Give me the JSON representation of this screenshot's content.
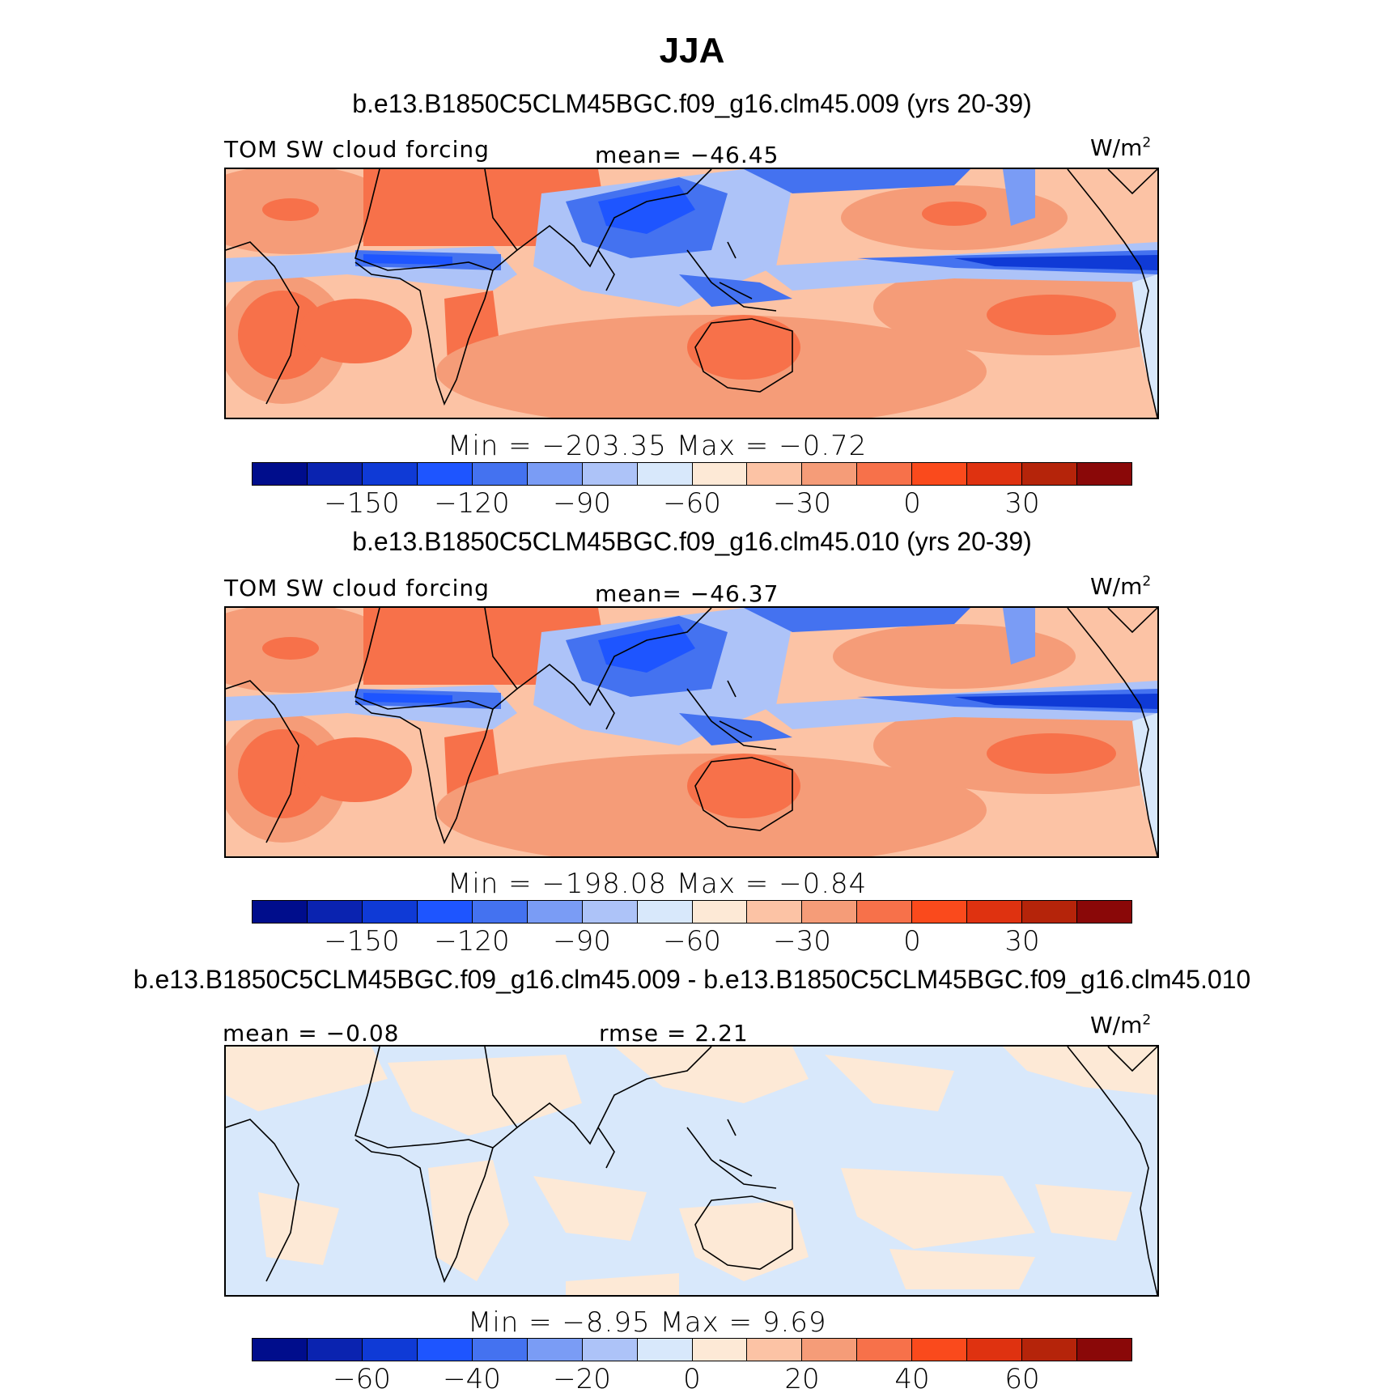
{
  "season": "JJA",
  "units": {
    "base": "W/m",
    "exp": "2"
  },
  "panel1": {
    "title": "b.e13.B1850C5CLM45BGC.f09_g16.clm45.009 (yrs 20-39)",
    "variable": "TOM SW cloud forcing",
    "mean": "mean= −46.45",
    "minmax": "Min = −203.35 Max =  −0.72"
  },
  "panel2": {
    "title": "b.e13.B1850C5CLM45BGC.f09_g16.clm45.010 (yrs 20-39)",
    "variable": "TOM SW cloud forcing",
    "mean": "mean= −46.37",
    "minmax": "Min = −198.08 Max =  −0.84"
  },
  "panel3": {
    "title": "b.e13.B1850C5CLM45BGC.f09_g16.clm45.009 - b.e13.B1850C5CLM45BGC.f09_g16.clm45.010",
    "mean": "mean =  −0.08",
    "rmse": "rmse =   2.21",
    "minmax": "Min =   −8.95 Max =   9.69"
  },
  "colorbar": {
    "colors": [
      "#000d8c",
      "#0a23b0",
      "#0f3ad6",
      "#1e55ff",
      "#4472f0",
      "#7a9cf5",
      "#adc3f8",
      "#d8e8fb",
      "#fde9d6",
      "#fcc3a5",
      "#f59c78",
      "#f7714a",
      "#fa4a1c",
      "#df3210",
      "#b5240a",
      "#8a0808"
    ],
    "ticks_abs": [
      "−150",
      "−120",
      "−90",
      "−60",
      "−30",
      "0",
      "30"
    ],
    "ticks_diff": [
      "−60",
      "−40",
      "−20",
      "0",
      "20",
      "40",
      "60"
    ]
  }
}
